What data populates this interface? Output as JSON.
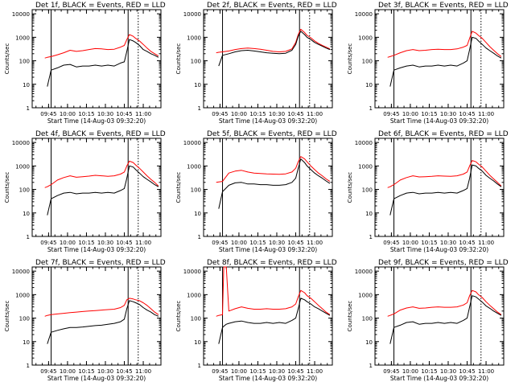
{
  "figure": {
    "common": {
      "title_suffix": "BLACK = Events, RED = LLD",
      "xlabel": "Start Time (14-Aug-03 09:32:20)",
      "ylabel": "Counts/sec",
      "x_ticks": [
        "09:45",
        "10:00",
        "10:15",
        "10:30",
        "10:45",
        "11:00"
      ],
      "y_ticks": [
        "1",
        "10",
        "100",
        "1000",
        "10000"
      ],
      "colors": {
        "events": "#000000",
        "lld": "#ff0000",
        "axes": "#000000"
      }
    }
  },
  "chart_data": [
    {
      "type": "line",
      "title": "Det 1f",
      "xlabel": "Start Time (14-Aug-03 09:32:20)",
      "ylabel": "Counts/sec",
      "x_unit": "time (HH:MM, 14-Aug-03)",
      "xlim": [
        "09:32",
        "11:14"
      ],
      "ylim": [
        1,
        15000
      ],
      "y_scale": "log",
      "x_ticks": [
        "09:45",
        "10:00",
        "10:15",
        "10:30",
        "10:45",
        "11:00"
      ],
      "y_ticks": [
        1,
        10,
        100,
        1000,
        10000
      ],
      "vlines": [
        "09:47",
        "10:48",
        "10:56"
      ],
      "x": [
        "09:42",
        "09:44",
        "09:47",
        "09:52",
        "09:57",
        "10:02",
        "10:07",
        "10:12",
        "10:17",
        "10:22",
        "10:27",
        "10:32",
        "10:37",
        "10:42",
        "10:45",
        "10:47",
        "10:49",
        "10:52",
        "10:54",
        "10:57",
        "11:00",
        "11:03",
        "11:06",
        "11:09",
        "11:12"
      ],
      "series": [
        {
          "name": "Events",
          "values": [
            null,
            8,
            40,
            50,
            65,
            70,
            55,
            60,
            60,
            65,
            60,
            65,
            60,
            80,
            90,
            250,
            800,
            700,
            600,
            450,
            300,
            250,
            200,
            170,
            140
          ]
        },
        {
          "name": "LLD",
          "values": [
            130,
            140,
            150,
            180,
            220,
            280,
            250,
            270,
            300,
            330,
            320,
            300,
            310,
            380,
            450,
            800,
            1300,
            1100,
            900,
            700,
            500,
            350,
            250,
            200,
            160
          ]
        }
      ]
    },
    {
      "type": "line",
      "title": "Det 2f",
      "xlabel": "Start Time (14-Aug-03 09:32:20)",
      "ylabel": "Counts/sec",
      "x_unit": "time (HH:MM, 14-Aug-03)",
      "xlim": [
        "09:32",
        "11:14"
      ],
      "ylim": [
        1,
        15000
      ],
      "y_scale": "log",
      "x_ticks": [
        "09:45",
        "10:00",
        "10:15",
        "10:30",
        "10:45",
        "11:00"
      ],
      "y_ticks": [
        1,
        10,
        100,
        1000,
        10000
      ],
      "vlines": [
        "09:47",
        "10:48",
        "10:56"
      ],
      "x": [
        "09:42",
        "09:44",
        "09:47",
        "09:52",
        "09:57",
        "10:02",
        "10:07",
        "10:12",
        "10:17",
        "10:22",
        "10:27",
        "10:32",
        "10:37",
        "10:42",
        "10:45",
        "10:47",
        "10:49",
        "10:52",
        "10:54",
        "10:57",
        "11:00",
        "11:03",
        "11:06",
        "11:09",
        "11:12"
      ],
      "series": [
        {
          "name": "Events",
          "values": [
            null,
            60,
            170,
            200,
            240,
            270,
            280,
            260,
            240,
            220,
            210,
            200,
            210,
            280,
            500,
            1100,
            1800,
            1300,
            1000,
            800,
            600,
            500,
            420,
            350,
            300
          ]
        },
        {
          "name": "LLD",
          "values": [
            220,
            230,
            240,
            260,
            300,
            330,
            350,
            330,
            310,
            280,
            250,
            240,
            250,
            320,
            600,
            1300,
            2200,
            1600,
            1200,
            950,
            700,
            550,
            450,
            380,
            320
          ]
        }
      ]
    },
    {
      "type": "line",
      "title": "Det 3f",
      "xlabel": "Start Time (14-Aug-03 09:32:20)",
      "ylabel": "Counts/sec",
      "x_unit": "time (HH:MM, 14-Aug-03)",
      "xlim": [
        "09:32",
        "11:14"
      ],
      "ylim": [
        1,
        15000
      ],
      "y_scale": "log",
      "x_ticks": [
        "09:45",
        "10:00",
        "10:15",
        "10:30",
        "10:45",
        "11:00"
      ],
      "y_ticks": [
        1,
        10,
        100,
        1000,
        10000
      ],
      "vlines": [
        "09:47",
        "10:48",
        "10:56"
      ],
      "x": [
        "09:42",
        "09:44",
        "09:47",
        "09:52",
        "09:57",
        "10:02",
        "10:07",
        "10:12",
        "10:17",
        "10:22",
        "10:27",
        "10:32",
        "10:37",
        "10:42",
        "10:45",
        "10:47",
        "10:49",
        "10:52",
        "10:54",
        "10:57",
        "11:00",
        "11:03",
        "11:06",
        "11:09",
        "11:12"
      ],
      "series": [
        {
          "name": "Events",
          "values": [
            null,
            8,
            40,
            50,
            60,
            65,
            55,
            60,
            60,
            65,
            60,
            65,
            60,
            80,
            100,
            300,
            1000,
            900,
            700,
            500,
            350,
            270,
            210,
            160,
            130
          ]
        },
        {
          "name": "LLD",
          "values": [
            140,
            150,
            170,
            220,
            270,
            300,
            270,
            280,
            300,
            310,
            300,
            300,
            320,
            380,
            450,
            900,
            1800,
            1500,
            1200,
            900,
            600,
            400,
            280,
            200,
            150
          ]
        }
      ]
    },
    {
      "type": "line",
      "title": "Det 4f",
      "xlabel": "Start Time (14-Aug-03 09:32:20)",
      "ylabel": "Counts/sec",
      "x_unit": "time (HH:MM, 14-Aug-03)",
      "xlim": [
        "09:32",
        "11:14"
      ],
      "ylim": [
        1,
        15000
      ],
      "y_scale": "log",
      "x_ticks": [
        "09:45",
        "10:00",
        "10:15",
        "10:30",
        "10:45",
        "11:00"
      ],
      "y_ticks": [
        1,
        10,
        100,
        1000,
        10000
      ],
      "vlines": [
        "09:47",
        "10:48",
        "10:56"
      ],
      "x": [
        "09:42",
        "09:44",
        "09:47",
        "09:52",
        "09:57",
        "10:02",
        "10:07",
        "10:12",
        "10:17",
        "10:22",
        "10:27",
        "10:32",
        "10:37",
        "10:42",
        "10:45",
        "10:47",
        "10:49",
        "10:52",
        "10:54",
        "10:57",
        "11:00",
        "11:03",
        "11:06",
        "11:09",
        "11:12"
      ],
      "series": [
        {
          "name": "Events",
          "values": [
            null,
            8,
            40,
            55,
            70,
            75,
            65,
            70,
            70,
            75,
            70,
            75,
            70,
            90,
            110,
            300,
            1000,
            900,
            700,
            500,
            350,
            270,
            210,
            160,
            130
          ]
        },
        {
          "name": "LLD",
          "values": [
            120,
            130,
            160,
            250,
            320,
            380,
            330,
            350,
            370,
            400,
            380,
            360,
            380,
            450,
            550,
            1000,
            1600,
            1400,
            1100,
            800,
            550,
            380,
            270,
            200,
            140
          ]
        }
      ]
    },
    {
      "type": "line",
      "title": "Det 5f",
      "xlabel": "Start Time (14-Aug-03 09:32:20)",
      "ylabel": "Counts/sec",
      "x_unit": "time (HH:MM, 14-Aug-03)",
      "xlim": [
        "09:32",
        "11:14"
      ],
      "ylim": [
        1,
        15000
      ],
      "y_scale": "log",
      "x_ticks": [
        "09:45",
        "10:00",
        "10:15",
        "10:30",
        "10:45",
        "11:00"
      ],
      "y_ticks": [
        1,
        10,
        100,
        1000,
        10000
      ],
      "vlines": [
        "09:47",
        "10:48",
        "10:56"
      ],
      "x": [
        "09:42",
        "09:44",
        "09:47",
        "09:52",
        "09:57",
        "10:02",
        "10:07",
        "10:12",
        "10:17",
        "10:22",
        "10:27",
        "10:32",
        "10:37",
        "10:42",
        "10:45",
        "10:47",
        "10:49",
        "10:52",
        "10:54",
        "10:57",
        "11:00",
        "11:03",
        "11:06",
        "11:09",
        "11:12"
      ],
      "series": [
        {
          "name": "Events",
          "values": [
            null,
            15,
            80,
            150,
            190,
            200,
            170,
            170,
            160,
            160,
            150,
            150,
            160,
            200,
            300,
            800,
            2000,
            1400,
            1000,
            700,
            500,
            380,
            300,
            230,
            180
          ]
        },
        {
          "name": "LLD",
          "values": [
            200,
            210,
            220,
            500,
            600,
            650,
            550,
            500,
            480,
            460,
            450,
            440,
            460,
            550,
            800,
            1500,
            2500,
            2000,
            1500,
            1000,
            700,
            500,
            380,
            280,
            220
          ]
        }
      ]
    },
    {
      "type": "line",
      "title": "Det 6f",
      "xlabel": "Start Time (14-Aug-03 09:32:20)",
      "ylabel": "Counts/sec",
      "x_unit": "time (HH:MM, 14-Aug-03)",
      "xlim": [
        "09:32",
        "11:14"
      ],
      "ylim": [
        1,
        15000
      ],
      "y_scale": "log",
      "x_ticks": [
        "09:45",
        "10:00",
        "10:15",
        "10:30",
        "10:45",
        "11:00"
      ],
      "y_ticks": [
        1,
        10,
        100,
        1000,
        10000
      ],
      "vlines": [
        "09:47",
        "10:48",
        "10:56"
      ],
      "x": [
        "09:42",
        "09:44",
        "09:47",
        "09:52",
        "09:57",
        "10:02",
        "10:07",
        "10:12",
        "10:17",
        "10:22",
        "10:27",
        "10:32",
        "10:37",
        "10:42",
        "10:45",
        "10:47",
        "10:49",
        "10:52",
        "10:54",
        "10:57",
        "11:00",
        "11:03",
        "11:06",
        "11:09",
        "11:12"
      ],
      "series": [
        {
          "name": "Events",
          "values": [
            null,
            8,
            40,
            55,
            70,
            75,
            65,
            70,
            70,
            75,
            70,
            75,
            70,
            90,
            110,
            300,
            1100,
            1000,
            800,
            600,
            400,
            300,
            230,
            170,
            130
          ]
        },
        {
          "name": "LLD",
          "values": [
            120,
            130,
            160,
            250,
            320,
            380,
            340,
            350,
            360,
            380,
            370,
            360,
            380,
            450,
            550,
            1000,
            1700,
            1500,
            1200,
            900,
            600,
            400,
            280,
            200,
            140
          ]
        }
      ]
    },
    {
      "type": "line",
      "title": "Det 7f",
      "xlabel": "Start Time (14-Aug-03 09:32:20)",
      "ylabel": "Counts/sec",
      "x_unit": "time (HH:MM, 14-Aug-03)",
      "xlim": [
        "09:32",
        "11:14"
      ],
      "ylim": [
        1,
        15000
      ],
      "y_scale": "log",
      "x_ticks": [
        "09:45",
        "10:00",
        "10:15",
        "10:30",
        "10:45",
        "11:00"
      ],
      "y_ticks": [
        1,
        10,
        100,
        1000,
        10000
      ],
      "vlines": [
        "09:47",
        "10:48",
        "10:56"
      ],
      "x": [
        "09:42",
        "09:44",
        "09:47",
        "09:52",
        "09:57",
        "10:02",
        "10:07",
        "10:12",
        "10:17",
        "10:22",
        "10:27",
        "10:32",
        "10:37",
        "10:42",
        "10:45",
        "10:47",
        "10:49",
        "10:52",
        "10:54",
        "10:57",
        "11:00",
        "11:03",
        "11:06",
        "11:09",
        "11:12"
      ],
      "series": [
        {
          "name": "Events",
          "values": [
            null,
            8,
            25,
            30,
            35,
            40,
            40,
            42,
            45,
            48,
            50,
            55,
            60,
            70,
            90,
            250,
            550,
            500,
            450,
            380,
            280,
            220,
            180,
            140,
            120
          ]
        },
        {
          "name": "LLD",
          "values": [
            120,
            130,
            140,
            150,
            160,
            170,
            180,
            190,
            200,
            210,
            220,
            230,
            240,
            280,
            350,
            600,
            700,
            650,
            600,
            550,
            450,
            350,
            250,
            180,
            140
          ]
        }
      ]
    },
    {
      "type": "line",
      "title": "Det 8f",
      "xlabel": "Start Time (14-Aug-03 09:32:20)",
      "ylabel": "Counts/sec",
      "x_unit": "time (HH:MM, 14-Aug-03)",
      "xlim": [
        "09:32",
        "11:14"
      ],
      "ylim": [
        1,
        15000
      ],
      "y_scale": "log",
      "x_ticks": [
        "09:45",
        "10:00",
        "10:15",
        "10:30",
        "10:45",
        "11:00"
      ],
      "y_ticks": [
        1,
        10,
        100,
        1000,
        10000
      ],
      "vlines": [
        "09:47",
        "10:48",
        "10:56"
      ],
      "x": [
        "09:42",
        "09:44",
        "09:47",
        "09:48",
        "09:49",
        "09:50",
        "09:52",
        "09:57",
        "10:02",
        "10:07",
        "10:12",
        "10:17",
        "10:22",
        "10:27",
        "10:32",
        "10:37",
        "10:42",
        "10:45",
        "10:47",
        "10:49",
        "10:52",
        "10:54",
        "10:57",
        "11:00",
        "11:03",
        "11:06",
        "11:09",
        "11:12"
      ],
      "series": [
        {
          "name": "Events",
          "values": [
            null,
            8,
            40,
            45,
            50,
            55,
            60,
            70,
            75,
            65,
            60,
            60,
            65,
            60,
            65,
            60,
            80,
            100,
            250,
            700,
            600,
            500,
            400,
            300,
            250,
            200,
            160,
            130
          ]
        },
        {
          "name": "LLD",
          "values": [
            120,
            130,
            140,
            15000,
            15000,
            15000,
            200,
            250,
            300,
            260,
            240,
            240,
            250,
            240,
            240,
            250,
            300,
            400,
            800,
            1500,
            1200,
            900,
            700,
            500,
            350,
            250,
            180,
            140
          ]
        }
      ]
    },
    {
      "type": "line",
      "title": "Det 9f",
      "xlabel": "Start Time (14-Aug-03 09:32:20)",
      "ylabel": "Counts/sec",
      "x_unit": "time (HH:MM, 14-Aug-03)",
      "xlim": [
        "09:32",
        "11:14"
      ],
      "ylim": [
        1,
        15000
      ],
      "y_scale": "log",
      "x_ticks": [
        "09:45",
        "10:00",
        "10:15",
        "10:30",
        "10:45",
        "11:00"
      ],
      "y_ticks": [
        1,
        10,
        100,
        1000,
        10000
      ],
      "vlines": [
        "09:47",
        "10:48",
        "10:56"
      ],
      "x": [
        "09:42",
        "09:44",
        "09:47",
        "09:52",
        "09:57",
        "10:02",
        "10:07",
        "10:12",
        "10:17",
        "10:22",
        "10:27",
        "10:32",
        "10:37",
        "10:42",
        "10:45",
        "10:47",
        "10:49",
        "10:52",
        "10:54",
        "10:57",
        "11:00",
        "11:03",
        "11:06",
        "11:09",
        "11:12"
      ],
      "series": [
        {
          "name": "Events",
          "values": [
            null,
            8,
            40,
            50,
            65,
            70,
            55,
            60,
            60,
            65,
            60,
            65,
            60,
            80,
            100,
            300,
            900,
            800,
            650,
            480,
            330,
            260,
            200,
            160,
            130
          ]
        },
        {
          "name": "LLD",
          "values": [
            120,
            130,
            150,
            220,
            270,
            300,
            260,
            270,
            290,
            300,
            290,
            290,
            300,
            360,
            450,
            900,
            1500,
            1300,
            1000,
            750,
            500,
            350,
            250,
            180,
            140
          ]
        }
      ]
    }
  ]
}
